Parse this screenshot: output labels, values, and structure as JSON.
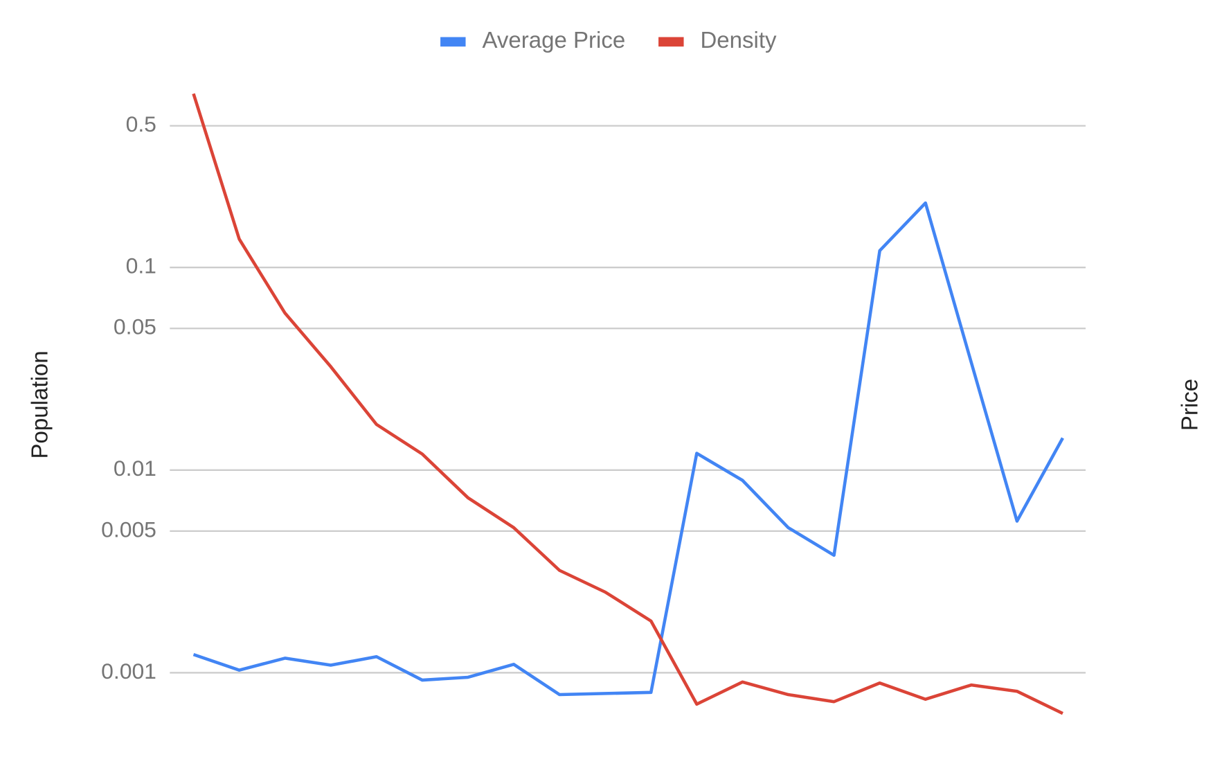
{
  "chart_data": {
    "type": "line",
    "y_label": "Population",
    "y2_label": "Price",
    "categories": [
      null,
      null,
      null,
      null,
      null,
      null,
      null,
      null,
      null,
      null,
      null,
      null,
      null,
      null,
      null,
      null,
      null,
      null,
      null,
      null
    ],
    "series": [
      {
        "name": "Average Price",
        "color": "#4285f4",
        "values": [
          0.00123,
          0.00103,
          0.00118,
          0.00109,
          0.0012,
          0.00092,
          0.00095,
          0.0011,
          0.00078,
          0.00079,
          0.0008,
          0.0121,
          0.0089,
          0.0052,
          0.0038,
          0.121,
          0.208,
          0.034,
          0.0056,
          0.0144
        ]
      },
      {
        "name": "Density",
        "color": "#db4437",
        "values": [
          0.72,
          0.138,
          0.0595,
          0.0324,
          0.0168,
          0.012,
          0.0073,
          0.0052,
          0.0032,
          0.0025,
          0.0018,
          0.0007,
          0.0009,
          0.00078,
          0.00072,
          0.00089,
          0.00074,
          0.00087,
          0.00081,
          0.00063
        ]
      }
    ],
    "log_scale": true,
    "ylim": [
      0.0005,
      0.8
    ],
    "yticks": [
      0.001,
      0.005,
      0.01,
      0.05,
      0.1,
      0.5
    ],
    "grid": true,
    "legend": "top"
  }
}
